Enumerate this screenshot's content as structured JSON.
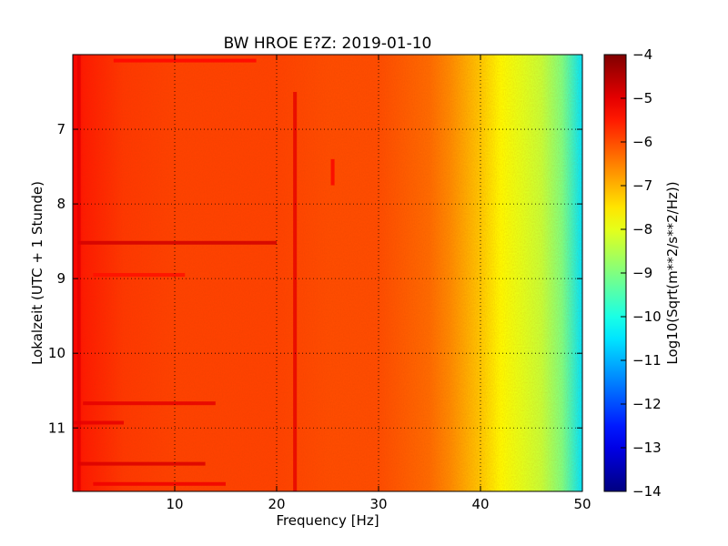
{
  "chart_data": {
    "type": "heatmap",
    "title": "BW HROE E?Z: 2019-01-10",
    "xlabel": "Frequency [Hz]",
    "ylabel": "Lokalzeit (UTC + 1 Stunde)",
    "xlim": [
      0,
      50
    ],
    "ylim": [
      6,
      11.85
    ],
    "y_inverted": true,
    "x_ticks": [
      10,
      20,
      30,
      40,
      50
    ],
    "y_ticks": [
      7,
      8,
      9,
      10,
      11
    ],
    "grid": true,
    "colormap": "jet",
    "colorbar": {
      "label": "Log10(Sqrt(m**2/s**2/Hz))",
      "range": [
        -14,
        -4
      ],
      "ticks": [
        -4,
        -5,
        -6,
        -7,
        -8,
        -9,
        -10,
        -11,
        -12,
        -13,
        -14
      ]
    },
    "level_profile": {
      "frequency_hz": [
        0,
        1,
        5,
        10,
        15,
        20,
        25,
        30,
        35,
        37,
        40,
        42,
        44,
        46,
        48,
        50
      ],
      "log_level": [
        -5.2,
        -5.5,
        -5.8,
        -5.9,
        -5.9,
        -5.9,
        -6.0,
        -6.0,
        -6.3,
        -6.6,
        -7.2,
        -7.7,
        -8.0,
        -8.3,
        -9.0,
        -10.5
      ]
    },
    "strong_features": [
      {
        "kind": "horizontal",
        "y": 8.52,
        "x_from": 0.5,
        "x_to": 20,
        "level": -4.8
      },
      {
        "kind": "horizontal",
        "y": 10.67,
        "x_from": 1,
        "x_to": 14,
        "level": -5.0
      },
      {
        "kind": "horizontal",
        "y": 11.48,
        "x_from": 0.5,
        "x_to": 13,
        "level": -4.9
      },
      {
        "kind": "horizontal",
        "y": 11.75,
        "x_from": 2,
        "x_to": 15,
        "level": -5.1
      },
      {
        "kind": "horizontal",
        "y": 10.93,
        "x_from": 0,
        "x_to": 5,
        "level": -5.0
      },
      {
        "kind": "horizontal",
        "y": 8.95,
        "x_from": 2,
        "x_to": 11,
        "level": -5.4
      },
      {
        "kind": "horizontal",
        "y": 6.08,
        "x_from": 4,
        "x_to": 18,
        "level": -5.3
      },
      {
        "kind": "vertical",
        "x": 21.8,
        "y_from": 6.5,
        "y_to": 11.85,
        "level": -5.0
      },
      {
        "kind": "vertical",
        "x": 0.6,
        "y_from": 6.0,
        "y_to": 11.85,
        "level": -5.0
      },
      {
        "kind": "vertical",
        "x": 25.5,
        "y_from": 7.4,
        "y_to": 7.75,
        "level": -5.2
      }
    ]
  }
}
